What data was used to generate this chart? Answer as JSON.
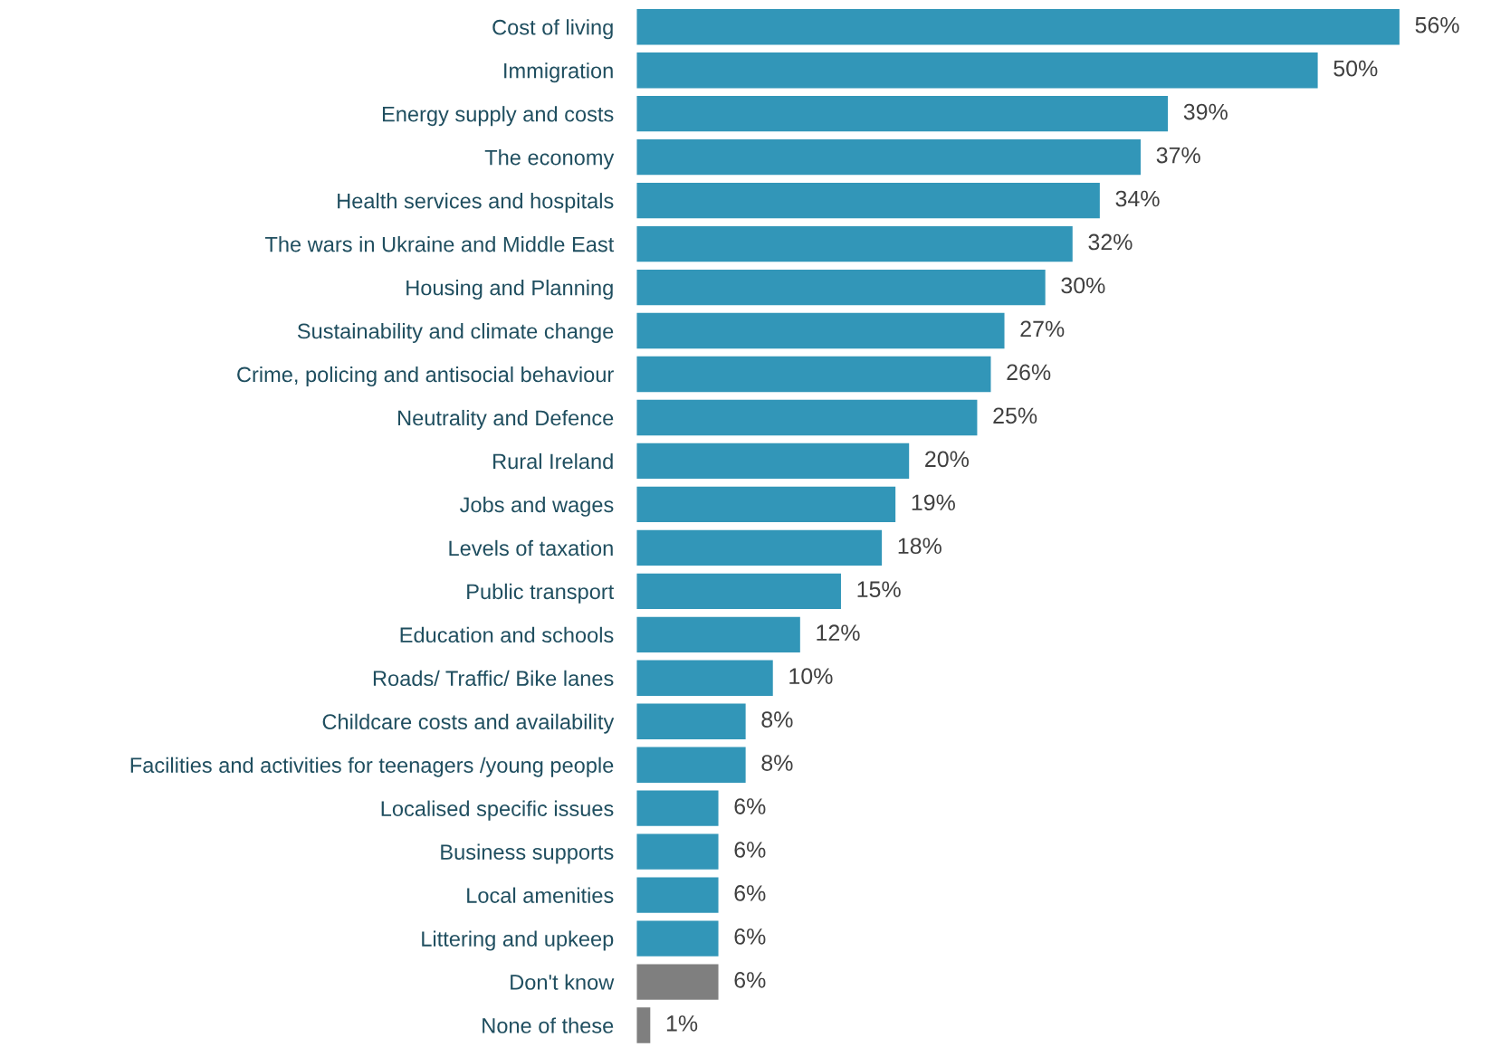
{
  "chart_data": {
    "type": "bar",
    "orientation": "horizontal",
    "categories": [
      "Cost of living",
      "Immigration",
      "Energy supply and costs",
      "The economy",
      "Health services and hospitals",
      "The wars in Ukraine and Middle East",
      "Housing and Planning",
      "Sustainability and climate change",
      "Crime, policing and antisocial behaviour",
      "Neutrality and Defence",
      "Rural Ireland",
      "Jobs and wages",
      "Levels of taxation",
      "Public transport",
      "Education and schools",
      "Roads/ Traffic/ Bike lanes",
      "Childcare costs and availability",
      "Facilities and activities for teenagers /young people",
      "Localised specific issues",
      "Business supports",
      "Local amenities",
      "Littering and upkeep",
      "Don't know",
      "None of these"
    ],
    "values": [
      56,
      50,
      39,
      37,
      34,
      32,
      30,
      27,
      26,
      25,
      20,
      19,
      18,
      15,
      12,
      10,
      8,
      8,
      6,
      6,
      6,
      6,
      6,
      1
    ],
    "colors": [
      "#3296b8",
      "#3296b8",
      "#3296b8",
      "#3296b8",
      "#3296b8",
      "#3296b8",
      "#3296b8",
      "#3296b8",
      "#3296b8",
      "#3296b8",
      "#3296b8",
      "#3296b8",
      "#3296b8",
      "#3296b8",
      "#3296b8",
      "#3296b8",
      "#3296b8",
      "#3296b8",
      "#3296b8",
      "#3296b8",
      "#3296b8",
      "#3296b8",
      "#7f7f7f",
      "#7f7f7f"
    ],
    "value_labels": [
      "56%",
      "50%",
      "39%",
      "37%",
      "34%",
      "32%",
      "30%",
      "27%",
      "26%",
      "25%",
      "20%",
      "19%",
      "18%",
      "15%",
      "12%",
      "10%",
      "8%",
      "8%",
      "6%",
      "6%",
      "6%",
      "6%",
      "6%",
      "1%"
    ],
    "tick_labels": "y",
    "grid": false,
    "legend": false
  }
}
